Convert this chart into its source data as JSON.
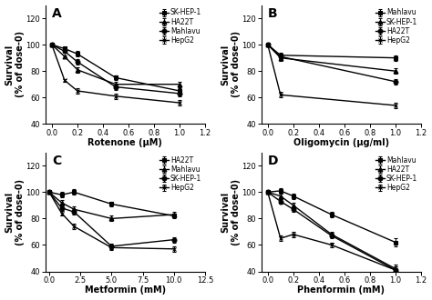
{
  "panel_A": {
    "title": "A",
    "xlabel": "Rotenone (μM)",
    "ylabel": "Survival\n(% of dose-0)",
    "xlim": [
      -0.05,
      1.2
    ],
    "ylim": [
      40,
      130
    ],
    "yticks": [
      40,
      60,
      80,
      100,
      120
    ],
    "xticks": [
      0.0,
      0.2,
      0.4,
      0.6,
      0.8,
      1.0,
      1.2
    ],
    "series": [
      {
        "label": "SK-HEP-1",
        "marker": "s",
        "x": [
          0,
          0.1,
          0.2,
          0.5,
          1.0
        ],
        "y": [
          100,
          97,
          93,
          75,
          65
        ],
        "yerr": [
          1,
          1,
          2,
          2,
          2
        ]
      },
      {
        "label": "HA22T",
        "marker": "^",
        "x": [
          0,
          0.1,
          0.2,
          0.5,
          1.0
        ],
        "y": [
          100,
          91,
          81,
          70,
          70
        ],
        "yerr": [
          1,
          1,
          2,
          2,
          2
        ]
      },
      {
        "label": "Mahlavu",
        "marker": "o",
        "x": [
          0,
          0.1,
          0.2,
          0.5,
          1.0
        ],
        "y": [
          100,
          95,
          87,
          68,
          63
        ],
        "yerr": [
          1,
          1,
          2,
          2,
          2
        ]
      },
      {
        "label": "HepG2",
        "marker": "x",
        "x": [
          0,
          0.1,
          0.2,
          0.5,
          1.0
        ],
        "y": [
          100,
          73,
          65,
          61,
          56
        ],
        "yerr": [
          1,
          1,
          2,
          2,
          2
        ]
      }
    ]
  },
  "panel_B": {
    "title": "B",
    "xlabel": "Oligomycin (μg/ml)",
    "ylabel": "Survival\n(% of dose-0)",
    "xlim": [
      -0.05,
      1.2
    ],
    "ylim": [
      40,
      130
    ],
    "yticks": [
      40,
      60,
      80,
      100,
      120
    ],
    "xticks": [
      0.0,
      0.2,
      0.4,
      0.6,
      0.8,
      1.0,
      1.2
    ],
    "series": [
      {
        "label": "Mahlavu",
        "marker": "s",
        "x": [
          0,
          0.1,
          1.0
        ],
        "y": [
          100,
          92,
          90
        ],
        "yerr": [
          1,
          2,
          2
        ]
      },
      {
        "label": "SK-HEP-1",
        "marker": "^",
        "x": [
          0,
          0.1,
          1.0
        ],
        "y": [
          100,
          90,
          80
        ],
        "yerr": [
          1,
          2,
          2
        ]
      },
      {
        "label": "HA22T",
        "marker": "o",
        "x": [
          0,
          0.1,
          1.0
        ],
        "y": [
          100,
          91,
          72
        ],
        "yerr": [
          1,
          2,
          2
        ]
      },
      {
        "label": "HepG2",
        "marker": "x",
        "x": [
          0,
          0.1,
          1.0
        ],
        "y": [
          100,
          62,
          54
        ],
        "yerr": [
          1,
          2,
          2
        ]
      }
    ]
  },
  "panel_C": {
    "title": "C",
    "xlabel": "Metformin (mM)",
    "ylabel": "Survival\n(% of dose-0)",
    "xlim": [
      -0.3,
      12.5
    ],
    "ylim": [
      40,
      130
    ],
    "yticks": [
      40,
      60,
      80,
      100,
      120
    ],
    "xticks": [
      0.0,
      2.5,
      5.0,
      7.5,
      10.0,
      12.5
    ],
    "series": [
      {
        "label": "HA22T",
        "marker": "s",
        "x": [
          0,
          1,
          2,
          5,
          10
        ],
        "y": [
          100,
          98,
          100,
          91,
          82
        ],
        "yerr": [
          1,
          2,
          2,
          2,
          2
        ]
      },
      {
        "label": "Mahlavu",
        "marker": "^",
        "x": [
          0,
          1,
          2,
          5,
          10
        ],
        "y": [
          100,
          92,
          87,
          80,
          83
        ],
        "yerr": [
          1,
          2,
          2,
          2,
          2
        ]
      },
      {
        "label": "SK-HEP-1",
        "marker": "o",
        "x": [
          0,
          1,
          2,
          5,
          10
        ],
        "y": [
          100,
          88,
          85,
          59,
          64
        ],
        "yerr": [
          1,
          2,
          2,
          2,
          2
        ]
      },
      {
        "label": "HepG2",
        "marker": "x",
        "x": [
          0,
          1,
          2,
          5,
          10
        ],
        "y": [
          100,
          84,
          74,
          58,
          57
        ],
        "yerr": [
          1,
          2,
          2,
          2,
          2
        ]
      }
    ]
  },
  "panel_D": {
    "title": "D",
    "xlabel": "Phenformin (mM)",
    "ylabel": "Survival\n(% of dose-0)",
    "xlim": [
      -0.05,
      1.2
    ],
    "ylim": [
      40,
      130
    ],
    "yticks": [
      40,
      60,
      80,
      100,
      120
    ],
    "xticks": [
      0.0,
      0.2,
      0.4,
      0.6,
      0.8,
      1.0,
      1.2
    ],
    "series": [
      {
        "label": "Mahlavu",
        "marker": "s",
        "x": [
          0,
          0.1,
          0.2,
          0.5,
          1.0
        ],
        "y": [
          100,
          101,
          97,
          83,
          62
        ],
        "yerr": [
          1,
          2,
          2,
          2,
          3
        ]
      },
      {
        "label": "HA22T",
        "marker": "^",
        "x": [
          0,
          0.1,
          0.2,
          0.5,
          1.0
        ],
        "y": [
          100,
          97,
          90,
          68,
          42
        ],
        "yerr": [
          1,
          2,
          2,
          2,
          3
        ]
      },
      {
        "label": "SK-HEP-1",
        "marker": "o",
        "x": [
          0,
          0.1,
          0.2,
          0.5,
          1.0
        ],
        "y": [
          100,
          93,
          87,
          67,
          41
        ],
        "yerr": [
          1,
          2,
          2,
          2,
          3
        ]
      },
      {
        "label": "HepG2",
        "marker": "x",
        "x": [
          0,
          0.1,
          0.2,
          0.5,
          1.0
        ],
        "y": [
          100,
          65,
          68,
          60,
          41
        ],
        "yerr": [
          1,
          2,
          2,
          2,
          3
        ]
      }
    ]
  },
  "line_color": "#000000",
  "markersize": 3.5,
  "linewidth": 1.0,
  "capsize": 1.5,
  "elinewidth": 0.7,
  "legend_fontsize": 5.5,
  "axis_fontsize": 6,
  "label_fontsize": 7,
  "title_fontsize": 10
}
